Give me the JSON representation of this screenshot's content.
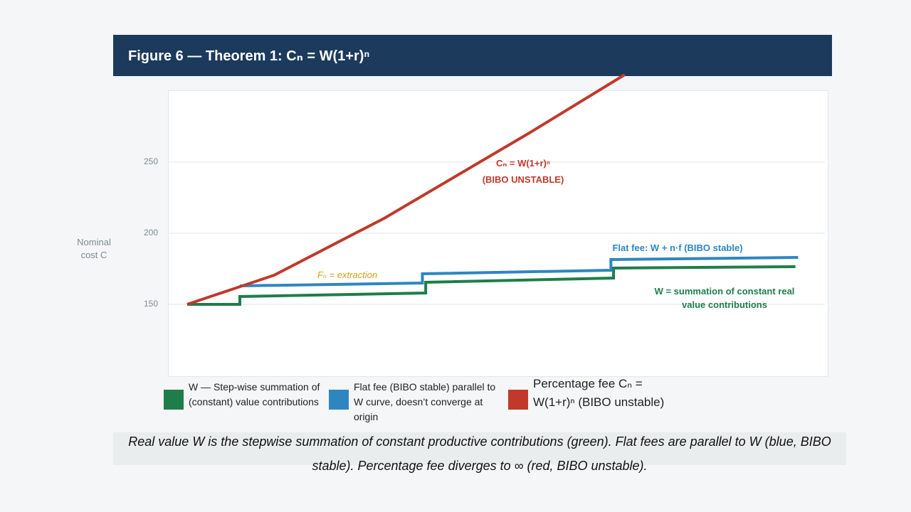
{
  "chart_data": {
    "type": "line",
    "title": "Figure 6 — Theorem 1: Cₙ = W(1+r)ⁿ",
    "y_label": "Nominal cost C",
    "xlim": [
      0,
      100
    ],
    "ylim": [
      100,
      300
    ],
    "yticks": [
      150,
      200,
      250
    ],
    "grid": true,
    "series": [
      {
        "name": "W — Step-wise summation of (constant) value contributions",
        "color": "#1e7e4a",
        "x": [
          2.8,
          10.8,
          10.8,
          39,
          39,
          67.5,
          67.5,
          95.1
        ],
        "values": [
          150,
          150,
          155.5,
          158,
          165.5,
          168.5,
          175.5,
          176.5
        ]
      },
      {
        "name": "Flat fee (BIBO stable) parallel to W curve, doesn’t converge at origin",
        "color": "#2e86c1",
        "x": [
          10.8,
          38.5,
          38.5,
          67.1,
          67.1,
          95.5
        ],
        "values": [
          163,
          165,
          171.5,
          174,
          181.5,
          183
        ]
      },
      {
        "name": "Percentage fee Cₙ = W(1+r)ⁿ (BIBO unstable)",
        "color": "#c0392b",
        "x": [
          2.8,
          16,
          32.7,
          54.9,
          69.2
        ],
        "values": [
          150,
          170.5,
          210.5,
          271,
          311.5
        ]
      }
    ],
    "annotations": [
      {
        "text": "Cₙ = W(1+r)ⁿ",
        "color": "#c0392b"
      },
      {
        "text": "(BIBO UNSTABLE)",
        "color": "#c0392b"
      },
      {
        "text": "Fₙ = extraction",
        "color": "#d4a017"
      },
      {
        "text": "Flat fee: W + n·f (BIBO stable)",
        "color": "#2e86c1"
      },
      {
        "text": "W = summation of constant real",
        "color": "#1e7e4a"
      },
      {
        "text": "value contributions",
        "color": "#1e7e4a"
      }
    ],
    "caption": "Real value W is the stepwise summation of constant productive contributions (green). Flat fees are parallel to W (blue, BIBO stable). Percentage fee diverges to ∞ (red, BIBO unstable)."
  }
}
